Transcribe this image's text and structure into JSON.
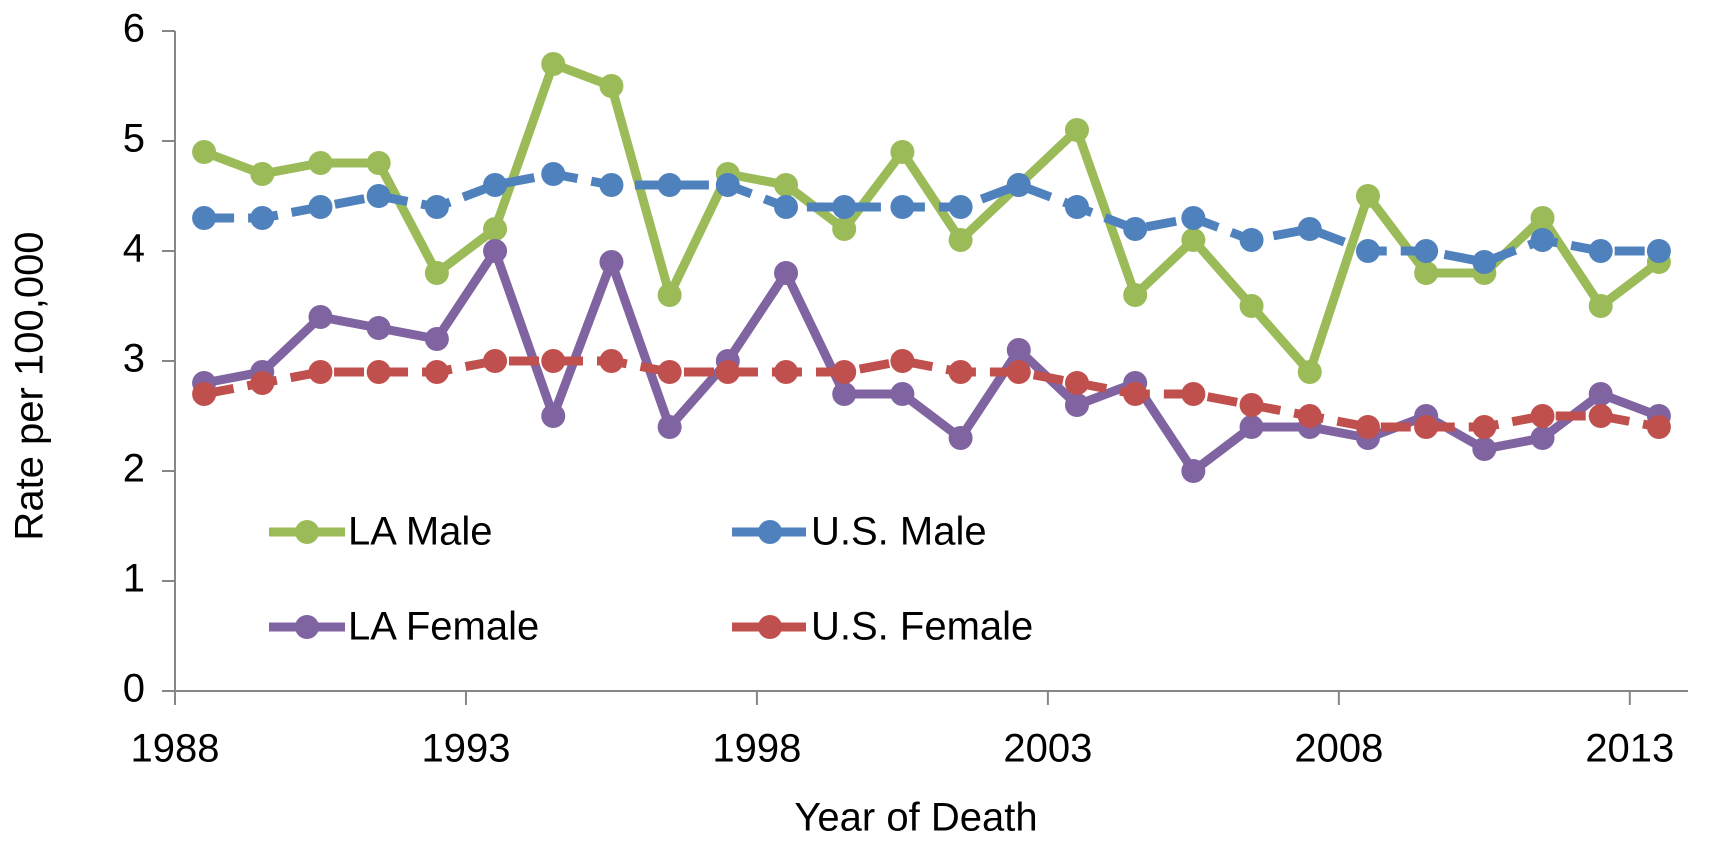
{
  "chart_data": {
    "type": "line",
    "x_label": "Year of Death",
    "y_label": "Rate per 100,000",
    "categories": [
      "1988",
      null,
      null,
      null,
      null,
      "1993",
      null,
      null,
      null,
      null,
      "1998",
      null,
      null,
      null,
      null,
      "2003",
      null,
      null,
      null,
      null,
      "2008",
      null,
      null,
      null,
      null,
      "2013"
    ],
    "series": [
      {
        "name": "LA Male",
        "color": "#9bbb59",
        "dashed": false,
        "values": [
          4.9,
          4.7,
          4.8,
          4.8,
          3.8,
          4.2,
          5.7,
          5.5,
          3.6,
          4.7,
          4.6,
          4.2,
          4.9,
          4.1,
          4.6,
          5.1,
          3.6,
          4.1,
          3.5,
          2.9,
          4.5,
          3.8,
          3.8,
          4.3,
          3.5,
          3.9
        ]
      },
      {
        "name": "U.S. Male",
        "color": "#4f81bd",
        "dashed": true,
        "values": [
          4.3,
          4.3,
          4.4,
          4.5,
          4.4,
          4.6,
          4.7,
          4.6,
          4.6,
          4.6,
          4.4,
          4.4,
          4.4,
          4.4,
          4.6,
          4.4,
          4.2,
          4.3,
          4.1,
          4.2,
          4.0,
          4.0,
          3.9,
          4.1,
          4.0,
          4.0
        ]
      },
      {
        "name": "LA Female",
        "color": "#8064a2",
        "dashed": false,
        "values": [
          2.8,
          2.9,
          3.4,
          3.3,
          3.2,
          4.0,
          2.5,
          3.9,
          2.4,
          3.0,
          3.8,
          2.7,
          2.7,
          2.3,
          3.1,
          2.6,
          2.8,
          2.0,
          2.4,
          2.4,
          2.3,
          2.5,
          2.2,
          2.3,
          2.7,
          2.5
        ]
      },
      {
        "name": "U.S. Female",
        "color": "#c0504d",
        "dashed": true,
        "values": [
          2.7,
          2.8,
          2.9,
          2.9,
          2.9,
          3.0,
          3.0,
          3.0,
          2.9,
          2.9,
          2.9,
          2.9,
          3.0,
          2.9,
          2.9,
          2.8,
          2.7,
          2.7,
          2.6,
          2.5,
          2.4,
          2.4,
          2.4,
          2.5,
          2.5,
          2.4
        ]
      }
    ],
    "ylim": [
      0,
      6
    ],
    "yticks": [
      0,
      1,
      2,
      3,
      4,
      5,
      6
    ],
    "grid": false,
    "legend": "lower left"
  }
}
